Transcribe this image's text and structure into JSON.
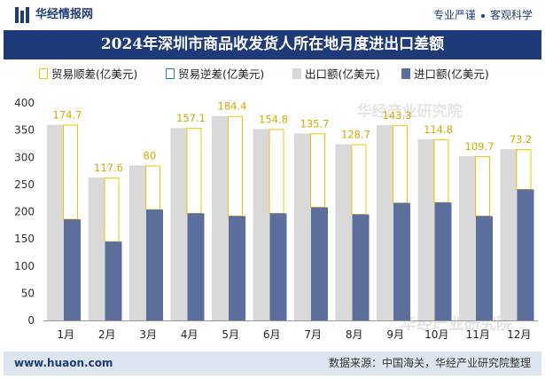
{
  "header": {
    "site_name": "华经情报网",
    "tagline_1": "专业严谨",
    "tagline_2": "客观科学"
  },
  "title": "2024年深圳市商品收发货人所在地月度进出口差额",
  "footer": {
    "url": "www.huaon.com",
    "source": "数据来源：中国海关，华经产业研究院整理"
  },
  "watermark": "华经产业研究院",
  "colors": {
    "export": "#d9d9d9",
    "import": "#5b6e9c",
    "surplus_border": "#f5c400",
    "deficit_border": "#2e75b6",
    "title_bg": "#1e3a78",
    "footer_bg": "#dde5f1"
  },
  "chart_data": {
    "type": "bar",
    "categories": [
      "1月",
      "2月",
      "3月",
      "4月",
      "5月",
      "6月",
      "7月",
      "8月",
      "9月",
      "10月",
      "11月",
      "12月"
    ],
    "legend": [
      {
        "name": "贸易顺差(亿美元)",
        "style": "outline",
        "color": "#f5c400"
      },
      {
        "name": "贸易逆差(亿美元)",
        "style": "outline",
        "color": "#2e75b6"
      },
      {
        "name": "出口额(亿美元)",
        "style": "fill",
        "color": "#d9d9d9"
      },
      {
        "name": "进口额(亿美元)",
        "style": "fill",
        "color": "#5b6e9c"
      }
    ],
    "series": [
      {
        "name": "出口额(亿美元)",
        "values": [
          360,
          263,
          285,
          354,
          376,
          352,
          344,
          324,
          359,
          333,
          302,
          315
        ]
      },
      {
        "name": "进口额(亿美元)",
        "values": [
          186,
          145,
          204,
          197,
          192,
          197,
          208,
          195,
          216,
          217,
          192,
          241
        ]
      },
      {
        "name": "贸易顺差(亿美元)",
        "values": [
          174.7,
          117.6,
          80,
          157.1,
          184.4,
          154.8,
          135.7,
          128.7,
          143.3,
          114.8,
          109.7,
          73.2
        ]
      }
    ],
    "data_labels": [
      "174.7",
      "117.6",
      "80",
      "157.1",
      "184.4",
      "154.8",
      "135.7",
      "128.7",
      "143.3",
      "114.8",
      "109.7",
      "73.2"
    ],
    "ylim": [
      0,
      400
    ],
    "yticks": [
      0,
      50,
      100,
      150,
      200,
      250,
      300,
      350,
      400
    ],
    "grid": false,
    "legend_position": "top"
  }
}
